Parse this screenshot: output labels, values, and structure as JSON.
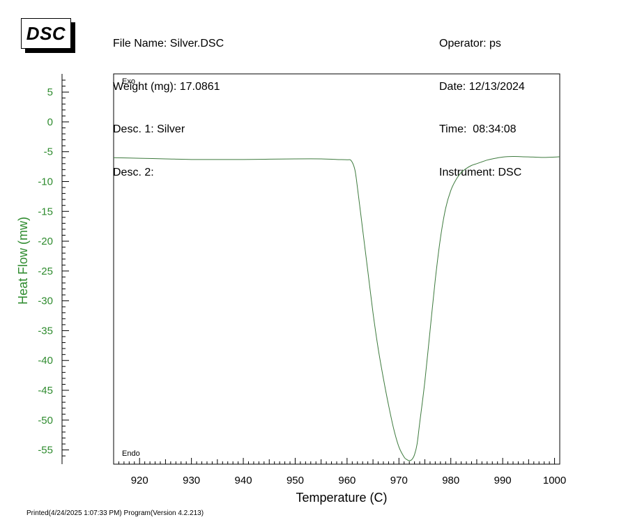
{
  "logo": "DSC",
  "header_left": [
    "File Name: Silver.DSC",
    "Weight (mg): 17.0861",
    "Desc. 1: Silver",
    "Desc. 2:"
  ],
  "header_right": [
    "Operator: ps",
    "Date: 12/13/2024",
    "Time:  08:34:08",
    "Instrument: DSC"
  ],
  "footer": "Printed(4/24/2025 1:07:33 PM) Program(Version 4.2.213)",
  "colors": {
    "series": "#3d7a3d",
    "ylabel": "#2e8b2e"
  },
  "chart_data": {
    "type": "line",
    "title": "",
    "xlabel": "Temperature (C)",
    "ylabel": "Heat Flow (mw)",
    "xlim": [
      915,
      1001
    ],
    "ylim": [
      -56.8,
      7.0
    ],
    "x_ticks": [
      920,
      930,
      940,
      950,
      960,
      970,
      980,
      990,
      1000
    ],
    "y_ticks": [
      5,
      0,
      -5,
      -10,
      -15,
      -20,
      -25,
      -30,
      -35,
      -40,
      -45,
      -50,
      -55
    ],
    "annotations": {
      "top": "Exo",
      "bottom": "Endo"
    },
    "grid": false,
    "series": [
      {
        "x": [
          915.0,
          920.0,
          925.0,
          930.0,
          935.0,
          940.0,
          945.0,
          950.0,
          955.0,
          958.0,
          960.0,
          960.8,
          961.5,
          962.0,
          963.0,
          964.0,
          965.0,
          966.0,
          967.0,
          968.0,
          969.0,
          970.0,
          971.0,
          971.5,
          972.0,
          972.5,
          973.0,
          973.5,
          974.0,
          975.0,
          976.0,
          977.0,
          978.0,
          979.0,
          980.0,
          981.0,
          982.0,
          983.0,
          984.0,
          985.0,
          986.0,
          987.0,
          988.0,
          990.0,
          992.0,
          994.0,
          996.0,
          998.0,
          1000.0,
          1001.0
        ],
        "y": [
          -6.0,
          -6.1,
          -6.2,
          -6.3,
          -6.3,
          -6.3,
          -6.25,
          -6.2,
          -6.2,
          -6.3,
          -6.35,
          -6.5,
          -8.0,
          -11.0,
          -18.0,
          -25.0,
          -32.0,
          -38.0,
          -43.0,
          -47.5,
          -51.5,
          -54.5,
          -56.2,
          -56.6,
          -56.8,
          -56.6,
          -55.8,
          -54.0,
          -50.5,
          -43.5,
          -35.0,
          -26.5,
          -19.5,
          -14.5,
          -11.5,
          -9.7,
          -8.5,
          -7.8,
          -7.3,
          -7.0,
          -6.7,
          -6.4,
          -6.2,
          -5.9,
          -5.8,
          -5.85,
          -5.9,
          -5.95,
          -5.9,
          -5.85
        ]
      }
    ]
  }
}
